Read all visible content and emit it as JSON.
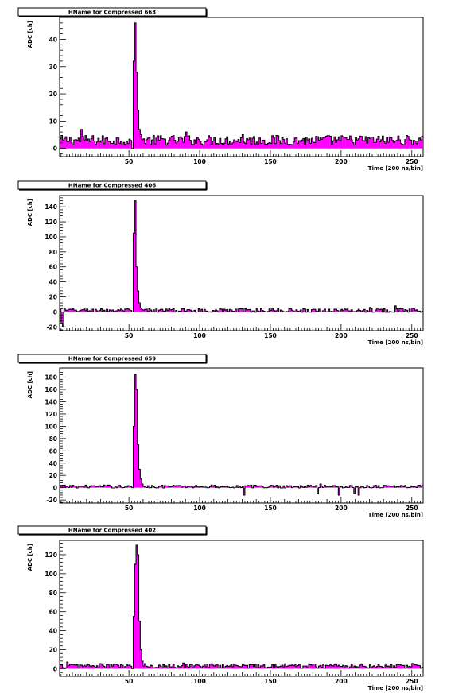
{
  "chart_data": [
    {
      "type": "bar",
      "title": "HName for Compressed 663",
      "xlabel": "Time [200 ns/bin]",
      "ylabel": "ADC [ch]",
      "xlim": [
        1,
        258
      ],
      "ylim": [
        -3,
        48
      ],
      "x_ticks": [
        50,
        100,
        150,
        200,
        250
      ],
      "y_ticks": [
        0,
        10,
        20,
        30,
        40
      ],
      "fill_color": "#ff00ff",
      "baseline": 3,
      "noise": 1.8,
      "peak": [
        [
          52,
          0
        ],
        [
          53,
          32
        ],
        [
          54,
          46
        ],
        [
          55,
          28
        ],
        [
          56,
          14
        ],
        [
          57,
          7
        ],
        [
          58,
          5
        ]
      ],
      "spikes": [
        [
          16,
          7
        ],
        [
          90,
          6
        ],
        [
          130,
          5
        ]
      ]
    },
    {
      "type": "bar",
      "title": "HName for Compressed 406",
      "xlabel": "Time [200 ns/bin]",
      "ylabel": "ADC [ch]",
      "xlim": [
        1,
        258
      ],
      "ylim": [
        -25,
        155
      ],
      "x_ticks": [
        50,
        100,
        150,
        200,
        250
      ],
      "y_ticks": [
        -20,
        0,
        20,
        40,
        60,
        80,
        100,
        120,
        140
      ],
      "fill_color": "#ff00ff",
      "baseline": 2,
      "noise": 2.5,
      "peak": [
        [
          52,
          0
        ],
        [
          53,
          105
        ],
        [
          54,
          148
        ],
        [
          55,
          60
        ],
        [
          56,
          28
        ],
        [
          57,
          12
        ],
        [
          58,
          5
        ],
        [
          59,
          3
        ]
      ],
      "spikes": [
        [
          2,
          -15
        ],
        [
          3,
          -20
        ],
        [
          4,
          5
        ],
        [
          220,
          6
        ],
        [
          238,
          8
        ],
        [
          250,
          5
        ]
      ]
    },
    {
      "type": "bar",
      "title": "HName for Compressed 659",
      "xlabel": "Time [200 ns/bin]",
      "ylabel": "ADC [ch]",
      "xlim": [
        1,
        258
      ],
      "ylim": [
        -25,
        195
      ],
      "x_ticks": [
        50,
        100,
        150,
        200,
        250
      ],
      "y_ticks": [
        -20,
        0,
        20,
        40,
        60,
        80,
        100,
        120,
        140,
        160,
        180
      ],
      "fill_color": "#ff00ff",
      "baseline": 2,
      "noise": 2.5,
      "peak": [
        [
          52,
          0
        ],
        [
          53,
          100
        ],
        [
          54,
          185
        ],
        [
          55,
          160
        ],
        [
          56,
          70
        ],
        [
          57,
          30
        ],
        [
          58,
          15
        ],
        [
          59,
          6
        ]
      ],
      "spikes": [
        [
          131,
          -12
        ],
        [
          183,
          -10
        ],
        [
          198,
          -12
        ],
        [
          209,
          -10
        ],
        [
          212,
          -12
        ],
        [
          185,
          6
        ],
        [
          230,
          4
        ]
      ]
    },
    {
      "type": "bar",
      "title": "HName for Compressed 402",
      "xlabel": "Time [200 ns/bin]",
      "ylabel": "ADC [ch]",
      "xlim": [
        1,
        258
      ],
      "ylim": [
        -8,
        135
      ],
      "x_ticks": [
        50,
        100,
        150,
        200,
        250
      ],
      "y_ticks": [
        0,
        20,
        40,
        60,
        80,
        100,
        120
      ],
      "fill_color": "#ff00ff",
      "baseline": 3,
      "noise": 2.5,
      "peak": [
        [
          52,
          0
        ],
        [
          53,
          55
        ],
        [
          54,
          110
        ],
        [
          55,
          130
        ],
        [
          56,
          120
        ],
        [
          57,
          50
        ],
        [
          58,
          20
        ],
        [
          59,
          8
        ]
      ],
      "spikes": [
        [
          6,
          7
        ],
        [
          88,
          6
        ]
      ]
    }
  ]
}
